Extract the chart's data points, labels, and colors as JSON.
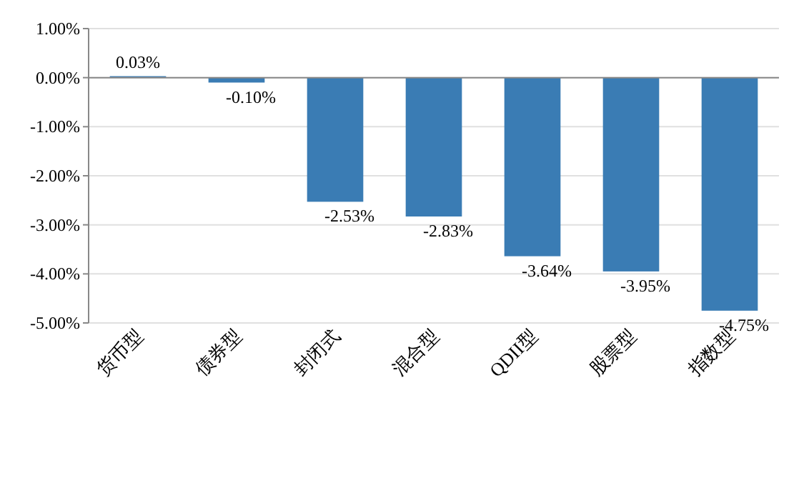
{
  "chart_data": {
    "type": "bar",
    "categories": [
      "货币型",
      "债券型",
      "封闭式",
      "混合型",
      "QDII型",
      "股票型",
      "指数型"
    ],
    "values": [
      0.03,
      -0.1,
      -2.53,
      -2.83,
      -3.64,
      -3.95,
      -4.75
    ],
    "value_labels": [
      "0.03%",
      "-0.10%",
      "-2.53%",
      "-2.83%",
      "-3.64%",
      "-3.95%",
      "-4.75%"
    ],
    "color": "#3a7cb4",
    "ylim": [
      -5,
      1
    ],
    "yticks": [
      {
        "value": 1,
        "label": "1.00%"
      },
      {
        "value": 0,
        "label": "0.00%"
      },
      {
        "value": -1,
        "label": "-1.00%"
      },
      {
        "value": -2,
        "label": "-2.00%"
      },
      {
        "value": -3,
        "label": "-3.00%"
      },
      {
        "value": -4,
        "label": "-4.00%"
      },
      {
        "value": -5,
        "label": "-5.00%"
      }
    ],
    "grid": "y"
  }
}
